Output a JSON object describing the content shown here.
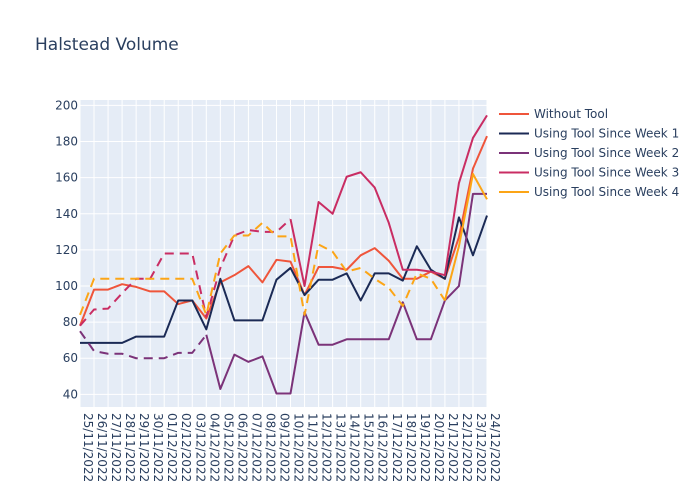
{
  "chart_data": {
    "type": "line",
    "title": "Halstead Volume",
    "xlabel": "",
    "ylabel": "",
    "ylim": [
      33,
      203
    ],
    "yticks": [
      40,
      60,
      80,
      100,
      120,
      140,
      160,
      180,
      200
    ],
    "grid": true,
    "legend_position": "top-right",
    "x": [
      "25/11/2022",
      "26/11/2022",
      "27/11/2022",
      "28/11/2022",
      "29/11/2022",
      "30/11/2022",
      "01/12/2022",
      "02/12/2022",
      "03/12/2022",
      "04/12/2022",
      "05/12/2022",
      "06/12/2022",
      "07/12/2022",
      "08/12/2022",
      "09/12/2022",
      "10/12/2022",
      "11/12/2022",
      "12/12/2022",
      "13/12/2022",
      "14/12/2022",
      "15/12/2022",
      "16/12/2022",
      "17/12/2022",
      "18/12/2022",
      "19/12/2022",
      "20/12/2022",
      "21/12/2022",
      "22/12/2022",
      "23/12/2022",
      "24/12/2022"
    ],
    "series": [
      {
        "name": "Without Tool",
        "color": "#ef553b",
        "values": [
          78,
          98,
          98,
          101,
          99.5,
          97,
          97,
          90,
          92,
          82,
          102,
          106,
          111,
          102,
          114.5,
          113.5,
          95,
          110.5,
          110.5,
          109,
          117,
          121,
          114,
          104,
          104,
          108,
          104,
          127,
          165,
          183
        ]
      },
      {
        "name": "Using Tool Since Week 1",
        "color": "#1b2a55",
        "values": [
          68.5,
          68.5,
          68.5,
          68.5,
          72,
          72,
          72,
          92,
          92,
          76,
          104,
          81,
          81,
          81,
          103.5,
          110,
          95,
          103.5,
          103.5,
          107,
          92,
          107,
          107,
          103,
          122,
          109,
          104,
          138,
          117,
          139
        ]
      },
      {
        "name": "Using Tool Since Week 2",
        "color": "#7b3379",
        "segments": [
          {
            "dash": true,
            "start": 0,
            "values": [
              75,
              64,
              62.5,
              62.5,
              60,
              60,
              60,
              63,
              63,
              73
            ]
          },
          {
            "dash": false,
            "start": 9,
            "values": [
              73,
              43,
              62,
              58,
              61,
              40.5,
              40.5,
              85.5,
              67.5,
              67.5,
              70.5,
              70.5,
              70.5,
              70.5,
              91,
              70.5,
              70.5,
              92,
              100,
              151,
              151
            ]
          }
        ]
      },
      {
        "name": "Using Tool Since Week 3",
        "color": "#c92d63",
        "segments": [
          {
            "dash": true,
            "start": 0,
            "values": [
              78,
              87,
              87.5,
              96,
              104,
              104,
              118,
              118,
              118,
              83,
              110,
              128,
              131,
              130,
              130,
              137
            ]
          },
          {
            "dash": false,
            "start": 15,
            "values": [
              137,
              100,
              146.5,
              140,
              160.5,
              163,
              154.5,
              135,
              109,
              109,
              108,
              106,
              157,
              182,
              194.5
            ]
          }
        ]
      },
      {
        "name": "Using Tool Since Week 4",
        "color": "#fca516",
        "segments": [
          {
            "dash": true,
            "start": 0,
            "values": [
              84,
              104,
              104,
              104,
              104,
              104,
              104,
              104,
              104,
              84,
              118,
              128,
              128,
              135,
              127.5,
              127.5,
              84,
              123,
              119,
              108,
              110,
              104,
              99,
              89,
              107,
              104,
              92
            ]
          },
          {
            "dash": false,
            "start": 26,
            "values": [
              92,
              122,
              162,
              148
            ]
          }
        ]
      }
    ]
  }
}
